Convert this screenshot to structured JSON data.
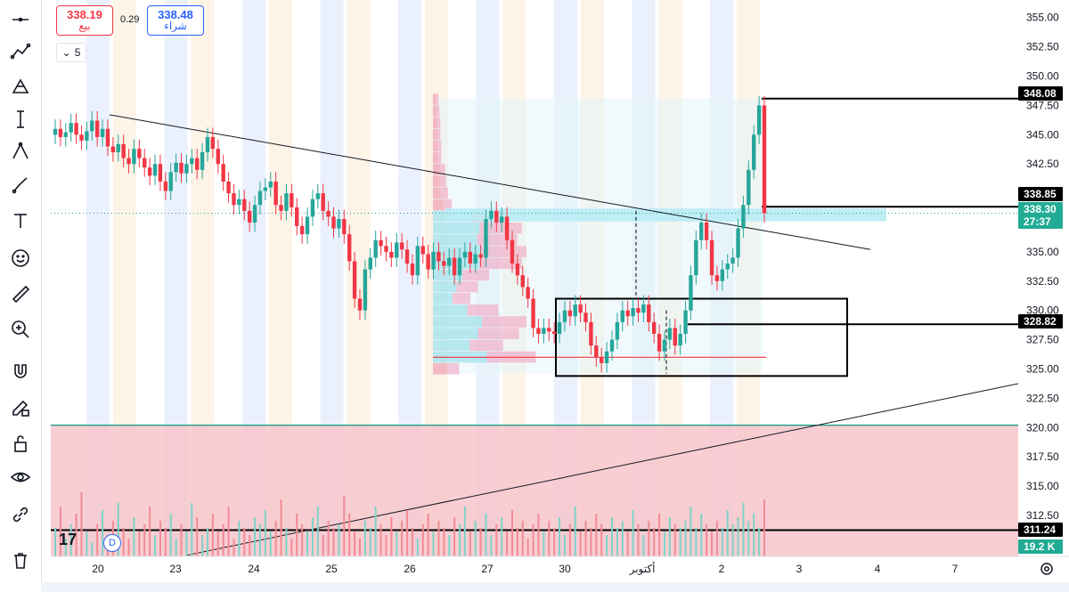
{
  "toolbar": {
    "tools": [
      {
        "name": "crosshair-tool",
        "icon": "crosshair-icon"
      },
      {
        "name": "trend-line-tool",
        "icon": "trend-line-icon"
      },
      {
        "name": "fib-tool",
        "icon": "fib-icon"
      },
      {
        "name": "pattern-tool",
        "icon": "pattern-icon"
      },
      {
        "name": "measure-tool",
        "icon": "measure-icon"
      },
      {
        "name": "brush-tool",
        "icon": "brush-icon"
      },
      {
        "name": "text-tool",
        "icon": "text-icon"
      },
      {
        "name": "emoji-tool",
        "icon": "smiley-icon"
      },
      {
        "name": "ruler-tool",
        "icon": "ruler-icon"
      },
      {
        "name": "zoom-tool",
        "icon": "zoom-in-icon"
      },
      {
        "name": "magnet-tool",
        "icon": "magnet-icon"
      },
      {
        "name": "lock-drawing-tool",
        "icon": "pencil-lock-icon"
      },
      {
        "name": "lock-tool",
        "icon": "lock-icon"
      },
      {
        "name": "visibility-tool",
        "icon": "eye-icon"
      },
      {
        "name": "link-tool",
        "icon": "link-icon"
      },
      {
        "name": "delete-tool",
        "icon": "trash-icon"
      }
    ]
  },
  "header": {
    "sell_price": "338.19",
    "sell_label": "بيع",
    "spread": "0.29",
    "buy_price": "338.48",
    "buy_label": "شراء",
    "interval": "5"
  },
  "footer": {
    "logo": "17",
    "d_badge": "D"
  },
  "colors": {
    "up": "#26a69a",
    "down": "#f23645",
    "volume_zone": "#f7c6cb",
    "value_area": "#b9ecf5",
    "blue_band": "#eaf1fd",
    "orange_band": "#fdf3e7"
  },
  "chart_data": {
    "type": "candlestick",
    "x_ticks": [
      "20",
      "23",
      "24",
      "25",
      "26",
      "27",
      "30",
      "أكتوبر",
      "2",
      "3",
      "4",
      "7"
    ],
    "y_ticks": [
      "355.00",
      "352.50",
      "350.00",
      "347.50",
      "345.00",
      "342.50",
      "340.00",
      "337.50",
      "335.00",
      "332.50",
      "330.00",
      "327.50",
      "325.00",
      "322.50",
      "320.00",
      "317.50",
      "315.00",
      "312.50"
    ],
    "ylim": [
      309,
      356.5
    ],
    "price_labels": [
      {
        "value": "348.08",
        "style": "black"
      },
      {
        "value": "338.85",
        "style": "black"
      },
      {
        "value": "338.30",
        "style": "teal"
      },
      {
        "value": "27:37",
        "style": "teal"
      },
      {
        "value": "328.82",
        "style": "black"
      },
      {
        "value": "311.24",
        "style": "black"
      },
      {
        "value": "19.2 K",
        "style": "teal"
      }
    ],
    "horizontal_lines": [
      348.08,
      338.85,
      328.82,
      311.24,
      320.2
    ],
    "current_price": 338.3,
    "range_box": {
      "top": 331.0,
      "bottom": 324.4
    },
    "support_level": 326.0,
    "volume_zone": {
      "top": 320.2,
      "bottom": 309
    },
    "value_area": {
      "top": 338.7,
      "bottom": 337.6
    },
    "trend_lines": [
      {
        "from_label": "20",
        "from_price": 346.7,
        "to_label": "3",
        "to_price": 335.2
      },
      {
        "from_label": "23",
        "from_price": 309.1,
        "to_label": "7+",
        "to_price": 325.0
      }
    ],
    "volume_profile": [
      {
        "price": 348.0,
        "len": 6
      },
      {
        "price": 347.0,
        "len": 7
      },
      {
        "price": 346.0,
        "len": 8
      },
      {
        "price": 345.0,
        "len": 8
      },
      {
        "price": 344.0,
        "len": 9
      },
      {
        "price": 343.0,
        "len": 9
      },
      {
        "price": 342.0,
        "len": 13
      },
      {
        "price": 341.0,
        "len": 14
      },
      {
        "price": 340.0,
        "len": 16
      },
      {
        "price": 339.0,
        "len": 20
      },
      {
        "price": 338.0,
        "len": 80
      },
      {
        "price": 337.0,
        "len": 95
      },
      {
        "price": 336.0,
        "len": 90
      },
      {
        "price": 335.0,
        "len": 100
      },
      {
        "price": 334.0,
        "len": 95
      },
      {
        "price": 333.0,
        "len": 60
      },
      {
        "price": 332.0,
        "len": 48
      },
      {
        "price": 331.0,
        "len": 40
      },
      {
        "price": 330.0,
        "len": 70
      },
      {
        "price": 329.0,
        "len": 100
      },
      {
        "price": 328.0,
        "len": 92
      },
      {
        "price": 327.0,
        "len": 75
      },
      {
        "price": 326.0,
        "len": 110
      },
      {
        "price": 325.0,
        "len": 28
      }
    ],
    "closes": [
      345.5,
      344.8,
      345.2,
      346.0,
      345.0,
      344.5,
      345.3,
      346.2,
      344.8,
      345.5,
      344.0,
      343.5,
      344.2,
      343.0,
      342.5,
      343.8,
      343.0,
      342.2,
      341.5,
      342.5,
      341.0,
      340.2,
      341.8,
      342.6,
      341.7,
      342.5,
      343.0,
      342.0,
      343.5,
      344.8,
      343.8,
      342.5,
      341.0,
      340.0,
      339.0,
      339.5,
      338.5,
      337.5,
      339.0,
      340.2,
      340.5,
      341.0,
      339.0,
      338.5,
      340.0,
      338.8,
      337.2,
      336.5,
      338.0,
      339.5,
      340.0,
      338.5,
      338.0,
      337.0,
      337.8,
      336.5,
      334.2,
      331.0,
      330.0,
      333.5,
      334.5,
      336.0,
      335.5,
      335.0,
      334.5,
      335.8,
      335.2,
      334.0,
      333.0,
      335.5,
      334.8,
      333.5,
      335.0,
      334.2,
      333.8,
      334.5,
      333.0,
      334.5,
      335.0,
      334.0,
      334.8,
      334.5,
      337.8,
      338.5,
      337.5,
      338.0,
      336.0,
      334.0,
      333.0,
      332.0,
      331.0,
      328.5,
      328.0,
      328.5,
      328.2,
      328.0,
      329.0,
      330.0,
      329.5,
      330.5,
      329.8,
      329.0,
      327.0,
      326.0,
      325.5,
      326.5,
      327.5,
      329.0,
      330.0,
      329.5,
      330.2,
      329.8,
      330.5,
      329.0,
      328.0,
      326.5,
      327.5,
      328.5,
      327.0,
      328.0,
      330.0,
      333.0,
      336.0,
      337.5,
      336.0,
      333.0,
      332.5,
      333.5,
      334.0,
      334.5,
      337.0,
      339.0,
      342.0,
      345.0,
      347.5,
      338.3
    ],
    "volumes": [
      8,
      14,
      5,
      9,
      12,
      18,
      7,
      4,
      9,
      13,
      6,
      10,
      15,
      8,
      5,
      11,
      7,
      9,
      14,
      6,
      10,
      8,
      12,
      5,
      9,
      7,
      15,
      11,
      6,
      8,
      12,
      7,
      9,
      14,
      5,
      10,
      8,
      6,
      11,
      9,
      13,
      7,
      10,
      16,
      8,
      5,
      12,
      9,
      7,
      11,
      14,
      6,
      10,
      8,
      9,
      17,
      12,
      7,
      5,
      10,
      8,
      14,
      9,
      6,
      11,
      7,
      10,
      13,
      8,
      5,
      9,
      12,
      7,
      10,
      8,
      6,
      11,
      9,
      14,
      7,
      10,
      8,
      12,
      6,
      9,
      11,
      7,
      13,
      8,
      10,
      5,
      9,
      12,
      7,
      10,
      8,
      11,
      6,
      9,
      14,
      7,
      10,
      8,
      12,
      9,
      6,
      11,
      8,
      10,
      7,
      13,
      9,
      6,
      10,
      8,
      12,
      7,
      11,
      9,
      8,
      10,
      14,
      8,
      12,
      9,
      7,
      10,
      8,
      13,
      9,
      11,
      15,
      10,
      12,
      8,
      16
    ]
  }
}
